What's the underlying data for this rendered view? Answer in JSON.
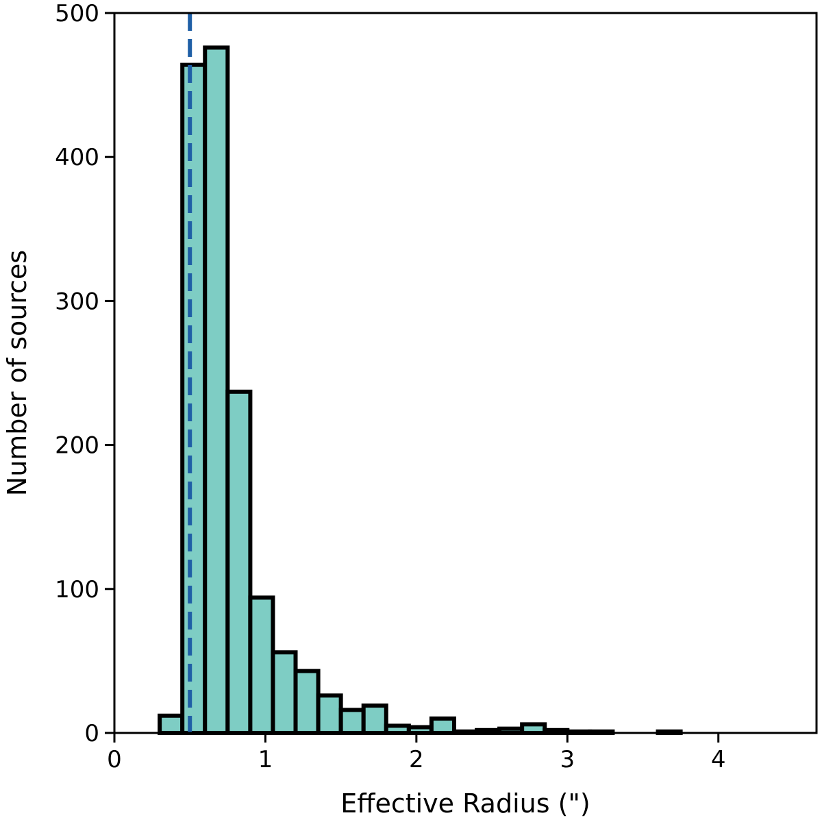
{
  "chart_data": {
    "type": "bar",
    "title": "",
    "xlabel": "Effective Radius (\")",
    "ylabel": "Number of sources",
    "xlim": [
      0,
      4.65
    ],
    "ylim": [
      0,
      500
    ],
    "x_ticks": [
      0,
      1,
      2,
      3,
      4
    ],
    "y_ticks": [
      0,
      100,
      200,
      300,
      400,
      500
    ],
    "grid": false,
    "bin_edges": [
      0.3,
      0.45,
      0.6,
      0.75,
      0.9,
      1.05,
      1.2,
      1.35,
      1.5,
      1.65,
      1.8,
      1.95,
      2.1,
      2.25,
      2.4,
      2.55,
      2.7,
      2.85,
      3.0,
      3.15,
      3.3,
      3.45,
      3.6,
      3.75
    ],
    "counts": [
      12,
      464,
      476,
      237,
      94,
      56,
      43,
      26,
      16,
      19,
      5,
      4,
      10,
      1,
      2,
      3,
      6,
      2,
      1,
      1,
      0,
      0,
      1
    ],
    "bar_color": "#7ecdc4",
    "edge_color": "#000000",
    "reference_line": {
      "x": 0.5,
      "style": "dashed",
      "color": "#1f5fa6"
    }
  }
}
